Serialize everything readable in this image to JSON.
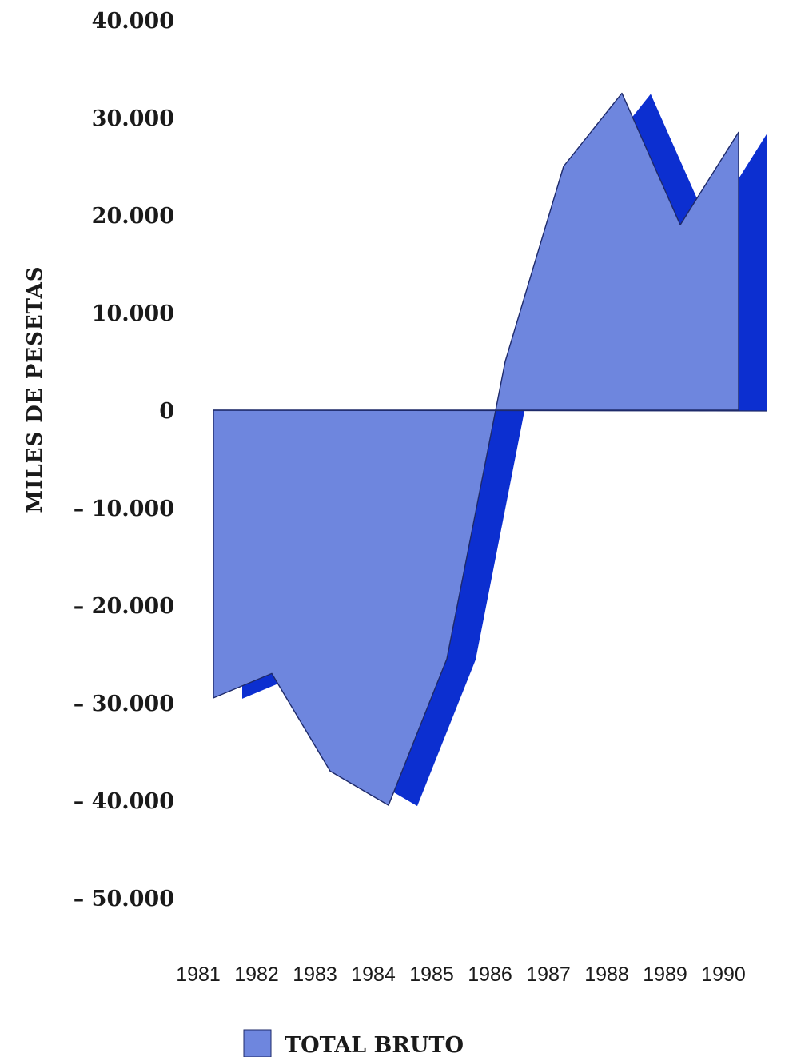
{
  "chart_data": {
    "type": "area",
    "title": "",
    "xlabel": "",
    "ylabel": "MILES DE PESETAS",
    "categories": [
      "1981",
      "1982",
      "1983",
      "1984",
      "1985",
      "1986",
      "1987",
      "1988",
      "1989",
      "1990"
    ],
    "series": [
      {
        "name": "TOTAL BRUTO",
        "values": [
          -29500,
          -27000,
          -37000,
          -40500,
          -25500,
          5000,
          25000,
          32500,
          19000,
          28500
        ]
      }
    ],
    "ylim": [
      -50000,
      40000
    ],
    "yticks": [
      40000,
      30000,
      20000,
      10000,
      0,
      -10000,
      -20000,
      -30000,
      -40000,
      -50000
    ],
    "ytick_labels": [
      "40.000",
      "30.000",
      "20.000",
      "10.000",
      "0",
      "– 10.000",
      "– 20.000",
      "– 30.000",
      "– 40.000",
      "– 50.000"
    ],
    "grid": false,
    "legend_position": "bottom",
    "colors": {
      "fill": "#6e86de",
      "depth": "#0c2fd0",
      "stroke": "#1e2a6a"
    }
  }
}
